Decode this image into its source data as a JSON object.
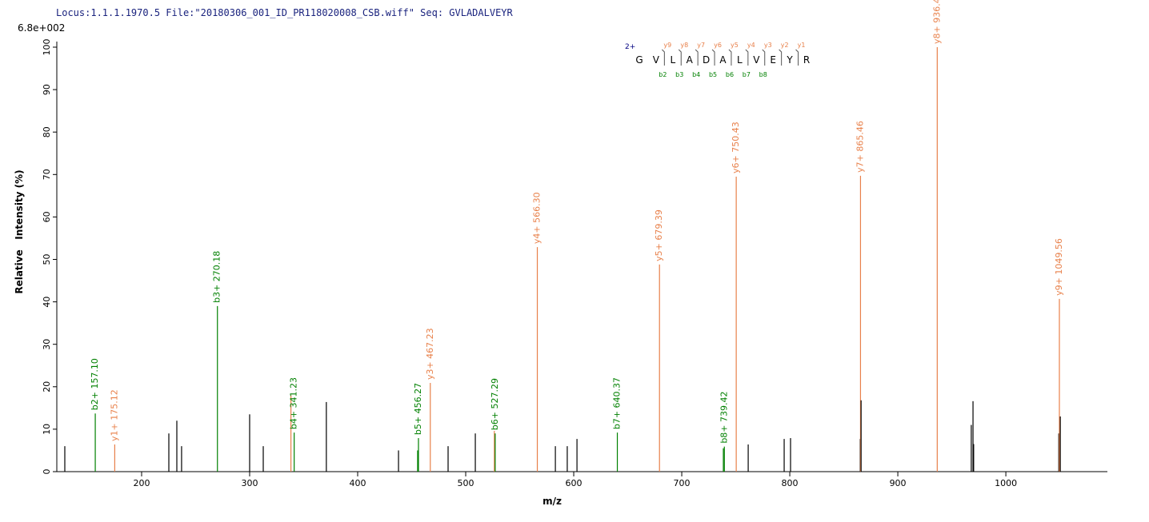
{
  "chart_data": {
    "type": "spectrum",
    "header": "Locus:1.1.1.1970.5 File:\"20180306_001_ID_PR118020008_CSB.wiff\"   Seq: GVLADALVEYR",
    "max_intensity": "6.8e+002",
    "xlabel": "m/z",
    "ylabel": "Relative   Intensity (%)",
    "xlim": [
      121.5,
      1094
    ],
    "ylim": [
      0,
      100
    ],
    "xticks": [
      200,
      300,
      400,
      500,
      600,
      700,
      800,
      900,
      1000
    ],
    "yticks": [
      0,
      10,
      20,
      30,
      40,
      50,
      60,
      70,
      80,
      90,
      100
    ],
    "x": [
      128.9,
      157.1,
      175.12,
      225.2,
      232.6,
      237,
      270.18,
      300,
      312.6,
      338.22,
      341.23,
      371,
      437.8,
      455.5,
      456.27,
      467.23,
      483.7,
      508.9,
      526.5,
      527.29,
      566.3,
      583,
      594,
      603,
      640.37,
      679.39,
      738.5,
      739.42,
      750.43,
      761.5,
      794.8,
      800.7,
      865.2,
      865.46,
      866,
      936.49,
      968,
      969.6,
      970.2,
      1049,
      1049.56,
      1050.4
    ],
    "values": [
      6.0,
      13.7,
      6.4,
      9,
      12,
      6,
      39,
      13.5,
      6,
      18,
      9.2,
      16.4,
      5,
      5,
      7.9,
      20.9,
      6,
      9,
      9.6,
      9,
      52.9,
      6,
      6,
      7.7,
      9.2,
      48.8,
      5.5,
      5.9,
      69.5,
      6.4,
      7.7,
      7.9,
      7.7,
      69.7,
      16.8,
      100,
      11,
      16.6,
      6.5,
      9,
      40.7,
      13
    ],
    "colors": [
      "#000000",
      "#008000",
      "#e8804a",
      "#000000",
      "#000000",
      "#000000",
      "#008000",
      "#000000",
      "#000000",
      "#e8804a",
      "#008000",
      "#000000",
      "#000000",
      "#008000",
      "#008000",
      "#e8804a",
      "#000000",
      "#000000",
      "#e8804a",
      "#008000",
      "#e8804a",
      "#000000",
      "#000000",
      "#000000",
      "#008000",
      "#e8804a",
      "#008000",
      "#008000",
      "#e8804a",
      "#000000",
      "#000000",
      "#000000",
      "#000000",
      "#e8804a",
      "#000000",
      "#e8804a",
      "#000000",
      "#000000",
      "#000000",
      "#000000",
      "#e8804a",
      "#000000"
    ],
    "peak_labels": [
      null,
      "b2+ 157.10",
      "y1+ 175.12",
      null,
      null,
      null,
      "b3+ 270.18",
      null,
      null,
      null,
      "b4+ 341.23",
      null,
      null,
      null,
      "b5+ 456.27",
      "y3+ 467.23",
      null,
      null,
      null,
      "b6+ 527.29",
      "y4+ 566.30",
      null,
      null,
      null,
      "b7+ 640.37",
      "y5+ 679.39",
      null,
      "b8+ 739.42",
      "y6+ 750.43",
      null,
      null,
      null,
      null,
      "y7+ 865.46",
      null,
      "y8+ 936.49",
      null,
      null,
      null,
      null,
      "y9+ 1049.56",
      null
    ],
    "sequence_diagram": {
      "charge": "2+",
      "residues": [
        "G",
        "V",
        "L",
        "A",
        "D",
        "A",
        "L",
        "V",
        "E",
        "Y",
        "R"
      ],
      "y_labels": [
        "y9",
        "y8",
        "y7",
        "y6",
        "y5",
        "y4",
        "y3",
        "y2",
        "y1"
      ],
      "b_labels": [
        "b2",
        "b3",
        "b4",
        "b5",
        "b6",
        "b7",
        "b8"
      ]
    }
  }
}
